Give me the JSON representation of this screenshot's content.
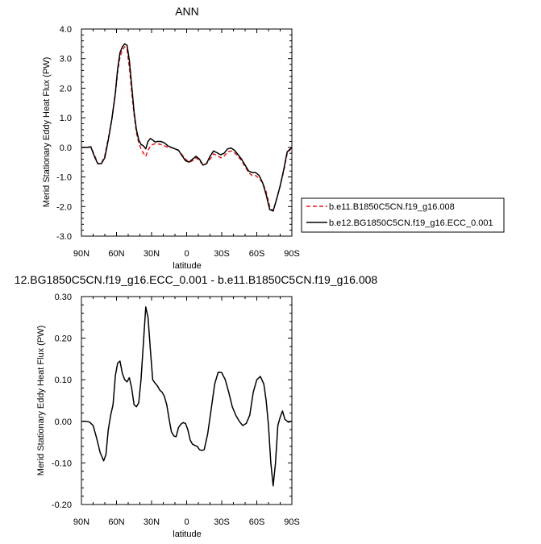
{
  "chart_data": [
    {
      "type": "line",
      "title": "ANN",
      "xlabel": "latitude",
      "ylabel": "Merid Stationary Eddy Heat Flux (PW)",
      "xlim": [
        90,
        -90
      ],
      "ylim": [
        -3.0,
        4.0
      ],
      "xticks": [
        90,
        60,
        30,
        0,
        -30,
        -60,
        -90
      ],
      "xtick_labels": [
        "90N",
        "60N",
        "30N",
        "0",
        "30S",
        "60S",
        "90S"
      ],
      "yticks": [
        -3.0,
        -2.0,
        -1.0,
        0.0,
        1.0,
        2.0,
        3.0,
        4.0
      ],
      "ytick_labels": [
        "-3.0",
        "-2.0",
        "-1.0",
        "0.0",
        "1.0",
        "2.0",
        "3.0",
        "4.0"
      ],
      "legend_position": "right",
      "series": [
        {
          "name": "b.e11.B1850C5CN.f19_g16.008",
          "color": "#e41a1c",
          "dash": true,
          "x": [
            90,
            85,
            82,
            79,
            76,
            73,
            70,
            67,
            64,
            61,
            59,
            57,
            55,
            53,
            51,
            49,
            47,
            45,
            43,
            41,
            39,
            37,
            35,
            33,
            31,
            29,
            27,
            25,
            22,
            19,
            16,
            13,
            10,
            7,
            4,
            1,
            -2,
            -5,
            -8,
            -11,
            -14,
            -17,
            -20,
            -23,
            -26,
            -29,
            -32,
            -35,
            -38,
            -41,
            -44,
            -47,
            -50,
            -53,
            -56,
            -59,
            -62,
            -65,
            -68,
            -71,
            -74,
            -77,
            -80,
            -83,
            -86,
            -90
          ],
          "y": [
            0.0,
            0.0,
            0.02,
            -0.25,
            -0.55,
            -0.55,
            -0.28,
            0.3,
            0.95,
            1.8,
            2.55,
            3.05,
            3.3,
            3.4,
            3.3,
            2.7,
            1.9,
            1.1,
            0.5,
            0.15,
            -0.05,
            -0.2,
            -0.3,
            -0.1,
            0.05,
            0.1,
            0.12,
            0.12,
            0.1,
            0.05,
            0.0,
            0.0,
            -0.05,
            -0.1,
            -0.25,
            -0.4,
            -0.5,
            -0.45,
            -0.35,
            -0.45,
            -0.6,
            -0.55,
            -0.4,
            -0.22,
            -0.28,
            -0.35,
            -0.3,
            -0.15,
            -0.12,
            -0.18,
            -0.3,
            -0.45,
            -0.65,
            -0.85,
            -0.95,
            -0.95,
            -1.05,
            -1.2,
            -1.5,
            -2.0,
            -2.15,
            -1.75,
            -1.3,
            -0.8,
            -0.2,
            0.0
          ]
        },
        {
          "name": "b.e12.BG1850C5CN.f19_g16.ECC_0.001",
          "color": "#000000",
          "dash": false,
          "x": [
            90,
            85,
            82,
            79,
            76,
            73,
            70,
            67,
            64,
            61,
            59,
            57,
            55,
            53,
            51,
            49,
            47,
            45,
            43,
            41,
            39,
            37,
            35,
            33,
            31,
            29,
            27,
            25,
            22,
            19,
            16,
            13,
            10,
            7,
            4,
            1,
            -2,
            -5,
            -8,
            -11,
            -14,
            -17,
            -20,
            -23,
            -26,
            -29,
            -32,
            -35,
            -38,
            -41,
            -44,
            -47,
            -50,
            -53,
            -56,
            -59,
            -62,
            -65,
            -68,
            -71,
            -74,
            -77,
            -80,
            -83,
            -86,
            -90
          ],
          "y": [
            0.0,
            0.0,
            0.02,
            -0.3,
            -0.55,
            -0.55,
            -0.35,
            0.25,
            0.95,
            1.85,
            2.65,
            3.2,
            3.4,
            3.5,
            3.45,
            2.95,
            2.1,
            1.2,
            0.6,
            0.25,
            0.1,
            0.05,
            -0.05,
            0.2,
            0.3,
            0.25,
            0.18,
            0.2,
            0.2,
            0.15,
            0.05,
            0.0,
            -0.05,
            -0.1,
            -0.28,
            -0.45,
            -0.5,
            -0.4,
            -0.3,
            -0.4,
            -0.6,
            -0.55,
            -0.3,
            -0.12,
            -0.18,
            -0.25,
            -0.2,
            -0.05,
            -0.02,
            -0.1,
            -0.25,
            -0.4,
            -0.6,
            -0.8,
            -0.85,
            -0.85,
            -0.95,
            -1.2,
            -1.6,
            -2.1,
            -2.15,
            -1.75,
            -1.3,
            -0.75,
            -0.15,
            0.0
          ]
        }
      ]
    },
    {
      "type": "line",
      "title": "12.BG1850C5CN.f19_g16.ECC_0.001 - b.e11.B1850C5CN.f19_g16.008",
      "xlabel": "latitude",
      "ylabel": "Merid Stationary Eddy Heat Flux (PW)",
      "xlim": [
        90,
        -90
      ],
      "ylim": [
        -0.2,
        0.3
      ],
      "xticks": [
        90,
        60,
        30,
        0,
        -30,
        -60,
        -90
      ],
      "xtick_labels": [
        "90N",
        "60N",
        "30N",
        "0",
        "30S",
        "60S",
        "90S"
      ],
      "yticks": [
        -0.2,
        -0.1,
        0.0,
        0.1,
        0.2,
        0.3
      ],
      "ytick_labels": [
        "-0.20",
        "-0.10",
        "0.00",
        "0.10",
        "0.20",
        "0.30"
      ],
      "series": [
        {
          "color": "#000000",
          "dash": false,
          "x": [
            90,
            86,
            83,
            80,
            77,
            74,
            71,
            69,
            67,
            65,
            63,
            61,
            59,
            57,
            55,
            53,
            51,
            49,
            47,
            45,
            43,
            41,
            39,
            37,
            35,
            33,
            31,
            29,
            27,
            25,
            23,
            21,
            19,
            17,
            15,
            13,
            11,
            9,
            7,
            5,
            3,
            1,
            -1,
            -3,
            -5,
            -7,
            -9,
            -11,
            -13,
            -15,
            -18,
            -21,
            -24,
            -27,
            -30,
            -33,
            -36,
            -39,
            -42,
            -45,
            -48,
            -51,
            -54,
            -57,
            -60,
            -63,
            -66,
            -68,
            -70,
            -72,
            -74,
            -76,
            -78,
            -80,
            -82,
            -84,
            -87,
            -90
          ],
          "y": [
            0.0,
            0.0,
            -0.002,
            -0.01,
            -0.04,
            -0.075,
            -0.095,
            -0.08,
            -0.02,
            0.015,
            0.04,
            0.11,
            0.14,
            0.145,
            0.115,
            0.1,
            0.095,
            0.105,
            0.08,
            0.04,
            0.035,
            0.045,
            0.1,
            0.19,
            0.275,
            0.25,
            0.17,
            0.1,
            0.092,
            0.085,
            0.075,
            0.07,
            0.06,
            0.04,
            0.005,
            -0.025,
            -0.035,
            -0.037,
            -0.015,
            -0.007,
            -0.003,
            -0.005,
            -0.02,
            -0.045,
            -0.055,
            -0.058,
            -0.06,
            -0.068,
            -0.07,
            -0.068,
            -0.03,
            0.03,
            0.09,
            0.118,
            0.117,
            0.1,
            0.07,
            0.035,
            0.015,
            0.0,
            -0.01,
            -0.005,
            0.015,
            0.07,
            0.1,
            0.108,
            0.09,
            0.05,
            -0.01,
            -0.1,
            -0.155,
            -0.1,
            -0.01,
            0.01,
            0.025,
            0.005,
            -0.002,
            0.0
          ]
        }
      ]
    }
  ]
}
